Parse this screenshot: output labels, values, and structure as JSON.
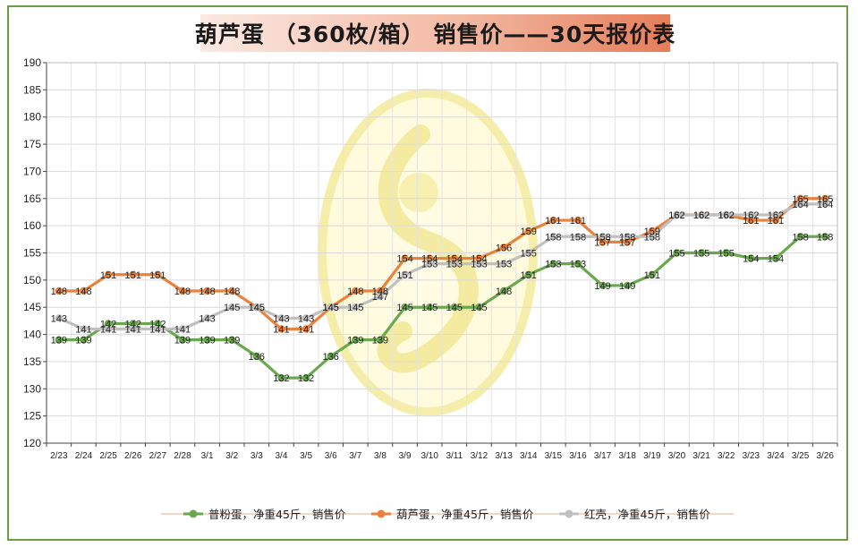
{
  "title": "葫芦蛋 （360枚/箱） 销售价——30天报价表",
  "chart_data": {
    "type": "line",
    "categories": [
      "2/23",
      "2/24",
      "2/25",
      "2/26",
      "2/27",
      "2/28",
      "3/1",
      "3/2",
      "3/3",
      "3/4",
      "3/5",
      "3/6",
      "3/7",
      "3/8",
      "3/9",
      "3/10",
      "3/11",
      "3/12",
      "3/13",
      "3/14",
      "3/15",
      "3/16",
      "3/17",
      "3/18",
      "3/19",
      "3/20",
      "3/21",
      "3/22",
      "3/23",
      "3/24",
      "3/25",
      "3/26"
    ],
    "ylim": [
      120,
      190
    ],
    "yticks": [
      120,
      125,
      130,
      135,
      140,
      145,
      150,
      155,
      160,
      165,
      170,
      175,
      180,
      185,
      190
    ],
    "grid": true,
    "legend_position": "bottom",
    "series": [
      {
        "name": "普粉蛋，净重45斤，销售价",
        "color": "#6aa84f",
        "values": [
          139,
          139,
          142,
          142,
          142,
          139,
          139,
          139,
          136,
          132,
          132,
          136,
          139,
          139,
          145,
          145,
          145,
          145,
          148,
          151,
          153,
          153,
          149,
          149,
          151,
          155,
          155,
          155,
          154,
          154,
          158,
          158
        ]
      },
      {
        "name": "葫芦蛋，净重45斤，销售价",
        "color": "#e8823d",
        "values": [
          148,
          148,
          151,
          151,
          151,
          148,
          148,
          148,
          145,
          141,
          141,
          145,
          148,
          148,
          154,
          154,
          154,
          154,
          156,
          159,
          161,
          161,
          157,
          157,
          159,
          162,
          162,
          162,
          161,
          161,
          165,
          165
        ]
      },
      {
        "name": "红壳，净重45斤，销售价",
        "color": "#c0c0c0",
        "values": [
          143,
          141,
          141,
          141,
          141,
          141,
          143,
          145,
          145,
          143,
          143,
          145,
          145,
          147,
          151,
          153,
          153,
          153,
          153,
          155,
          158,
          158,
          158,
          158,
          158,
          162,
          162,
          162,
          162,
          162,
          164,
          164
        ]
      }
    ]
  }
}
